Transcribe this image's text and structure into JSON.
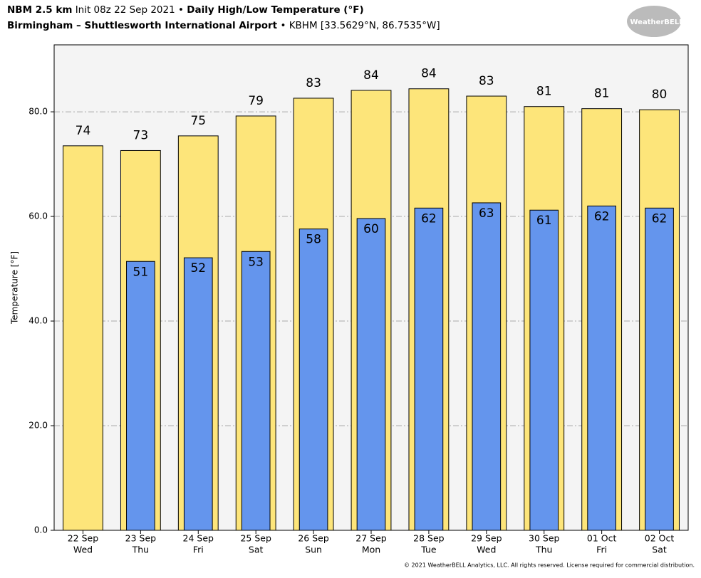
{
  "chart_data": {
    "type": "bar",
    "title_model": "NBM 2.5 km",
    "title_init": "Init 08z 22 Sep 2021",
    "title_bullet": "•",
    "title": "Daily High/Low Temperature (°F)",
    "subtitle_station": "Birmingham – Shuttlesworth International Airport",
    "subtitle_location": "• KBHM [33.5629°N, 86.7535°W]",
    "logo": "WeatherBELL",
    "y_label": "Temperature [°F]",
    "footer": "© 2021 WeatherBELL Analytics, LLC. All rights reserved. License required for commercial distribution.",
    "categories": [
      [
        "22 Sep",
        "Wed"
      ],
      [
        "23 Sep",
        "Thu"
      ],
      [
        "24 Sep",
        "Fri"
      ],
      [
        "25 Sep",
        "Sat"
      ],
      [
        "26 Sep",
        "Sun"
      ],
      [
        "27 Sep",
        "Mon"
      ],
      [
        "28 Sep",
        "Tue"
      ],
      [
        "29 Sep",
        "Wed"
      ],
      [
        "30 Sep",
        "Thu"
      ],
      [
        "01 Oct",
        "Fri"
      ],
      [
        "02 Oct",
        "Sat"
      ]
    ],
    "series": [
      {
        "color": "#fde57a",
        "values": [
          73.5,
          72.6,
          75.4,
          79.2,
          82.6,
          84.1,
          84.4,
          83.0,
          81.0,
          80.6,
          80.4
        ],
        "value_labels": [
          "74",
          "73",
          "75",
          "79",
          "83",
          "84",
          "84",
          "83",
          "81",
          "81",
          "80"
        ]
      },
      {
        "color": "#6495ed",
        "values": [
          null,
          51.4,
          52.1,
          53.3,
          57.6,
          59.6,
          61.6,
          62.6,
          61.2,
          62.0,
          61.6
        ],
        "value_labels": [
          null,
          "51",
          "52",
          "53",
          "58",
          "60",
          "62",
          "63",
          "61",
          "62",
          "62"
        ]
      }
    ],
    "ylim": [
      0,
      92.8
    ],
    "yticks": [
      {
        "value": 0,
        "label": "0.0"
      },
      {
        "value": 20,
        "label": "20.0"
      },
      {
        "value": 40,
        "label": "40.0"
      },
      {
        "value": 60,
        "label": "60.0"
      },
      {
        "value": 80,
        "label": "80.0"
      }
    ],
    "grid": true,
    "background": "#f4f4f4"
  }
}
